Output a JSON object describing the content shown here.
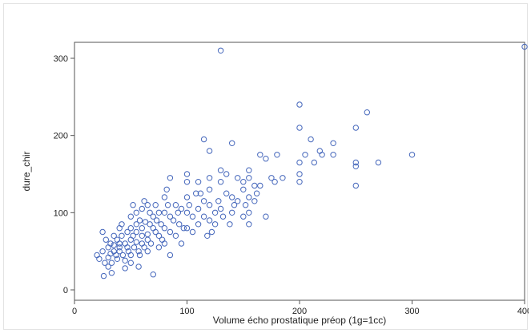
{
  "chart_data": {
    "type": "scatter",
    "title": "",
    "xlabel": "Volume écho prostatique préop (1g=1cc)",
    "ylabel": "dure_chir",
    "xlim": [
      0,
      400
    ],
    "ylim": [
      0,
      310
    ],
    "xticks": [
      0,
      100,
      200,
      300,
      400
    ],
    "yticks": [
      0,
      100,
      200,
      300
    ],
    "grid": false,
    "marker": "open-circle",
    "marker_color": "#4466bb",
    "points": [
      [
        20,
        45
      ],
      [
        22,
        40
      ],
      [
        25,
        75
      ],
      [
        25,
        50
      ],
      [
        26,
        18
      ],
      [
        27,
        35
      ],
      [
        28,
        65
      ],
      [
        30,
        55
      ],
      [
        30,
        42
      ],
      [
        30,
        30
      ],
      [
        32,
        60
      ],
      [
        32,
        47
      ],
      [
        33,
        35
      ],
      [
        33,
        22
      ],
      [
        35,
        70
      ],
      [
        35,
        58
      ],
      [
        35,
        50
      ],
      [
        37,
        45
      ],
      [
        38,
        40
      ],
      [
        38,
        65
      ],
      [
        40,
        80
      ],
      [
        40,
        60
      ],
      [
        40,
        55
      ],
      [
        40,
        50
      ],
      [
        42,
        85
      ],
      [
        42,
        70
      ],
      [
        43,
        45
      ],
      [
        45,
        60
      ],
      [
        45,
        38
      ],
      [
        45,
        28
      ],
      [
        47,
        75
      ],
      [
        47,
        55
      ],
      [
        48,
        50
      ],
      [
        50,
        95
      ],
      [
        50,
        80
      ],
      [
        50,
        65
      ],
      [
        50,
        45
      ],
      [
        50,
        35
      ],
      [
        52,
        110
      ],
      [
        52,
        70
      ],
      [
        53,
        55
      ],
      [
        55,
        100
      ],
      [
        55,
        85
      ],
      [
        55,
        75
      ],
      [
        55,
        62
      ],
      [
        57,
        50
      ],
      [
        57,
        30
      ],
      [
        58,
        90
      ],
      [
        58,
        45
      ],
      [
        60,
        105
      ],
      [
        60,
        80
      ],
      [
        60,
        70
      ],
      [
        60,
        60
      ],
      [
        62,
        115
      ],
      [
        62,
        55
      ],
      [
        63,
        88
      ],
      [
        65,
        110
      ],
      [
        65,
        72
      ],
      [
        65,
        65
      ],
      [
        65,
        50
      ],
      [
        67,
        100
      ],
      [
        67,
        85
      ],
      [
        68,
        60
      ],
      [
        70,
        95
      ],
      [
        70,
        80
      ],
      [
        70,
        20
      ],
      [
        72,
        110
      ],
      [
        72,
        75
      ],
      [
        73,
        90
      ],
      [
        75,
        100
      ],
      [
        75,
        70
      ],
      [
        75,
        55
      ],
      [
        77,
        85
      ],
      [
        78,
        65
      ],
      [
        80,
        120
      ],
      [
        80,
        100
      ],
      [
        80,
        80
      ],
      [
        80,
        60
      ],
      [
        82,
        130
      ],
      [
        83,
        110
      ],
      [
        85,
        145
      ],
      [
        85,
        95
      ],
      [
        85,
        75
      ],
      [
        85,
        45
      ],
      [
        88,
        90
      ],
      [
        90,
        110
      ],
      [
        90,
        70
      ],
      [
        92,
        100
      ],
      [
        93,
        85
      ],
      [
        95,
        105
      ],
      [
        95,
        60
      ],
      [
        97,
        80
      ],
      [
        100,
        150
      ],
      [
        100,
        140
      ],
      [
        100,
        120
      ],
      [
        100,
        100
      ],
      [
        100,
        80
      ],
      [
        102,
        110
      ],
      [
        105,
        95
      ],
      [
        105,
        75
      ],
      [
        108,
        125
      ],
      [
        110,
        140
      ],
      [
        110,
        105
      ],
      [
        110,
        85
      ],
      [
        112,
        125
      ],
      [
        115,
        195
      ],
      [
        115,
        115
      ],
      [
        115,
        95
      ],
      [
        118,
        70
      ],
      [
        120,
        180
      ],
      [
        120,
        145
      ],
      [
        120,
        130
      ],
      [
        120,
        110
      ],
      [
        120,
        90
      ],
      [
        122,
        75
      ],
      [
        125,
        100
      ],
      [
        125,
        85
      ],
      [
        128,
        115
      ],
      [
        130,
        310
      ],
      [
        130,
        155
      ],
      [
        130,
        140
      ],
      [
        130,
        105
      ],
      [
        132,
        95
      ],
      [
        135,
        150
      ],
      [
        135,
        125
      ],
      [
        138,
        85
      ],
      [
        140,
        190
      ],
      [
        140,
        120
      ],
      [
        140,
        100
      ],
      [
        142,
        110
      ],
      [
        145,
        145
      ],
      [
        145,
        115
      ],
      [
        150,
        140
      ],
      [
        150,
        130
      ],
      [
        150,
        95
      ],
      [
        152,
        110
      ],
      [
        155,
        155
      ],
      [
        155,
        145
      ],
      [
        155,
        120
      ],
      [
        155,
        100
      ],
      [
        155,
        85
      ],
      [
        160,
        135
      ],
      [
        160,
        115
      ],
      [
        162,
        125
      ],
      [
        165,
        135
      ],
      [
        165,
        175
      ],
      [
        170,
        170
      ],
      [
        170,
        95
      ],
      [
        175,
        145
      ],
      [
        178,
        140
      ],
      [
        180,
        175
      ],
      [
        185,
        145
      ],
      [
        200,
        240
      ],
      [
        200,
        210
      ],
      [
        200,
        165
      ],
      [
        200,
        150
      ],
      [
        200,
        140
      ],
      [
        205,
        175
      ],
      [
        210,
        195
      ],
      [
        213,
        165
      ],
      [
        218,
        180
      ],
      [
        220,
        175
      ],
      [
        230,
        190
      ],
      [
        230,
        175
      ],
      [
        250,
        210
      ],
      [
        250,
        165
      ],
      [
        250,
        160
      ],
      [
        250,
        135
      ],
      [
        260,
        230
      ],
      [
        270,
        165
      ],
      [
        300,
        175
      ],
      [
        400,
        315
      ]
    ]
  }
}
